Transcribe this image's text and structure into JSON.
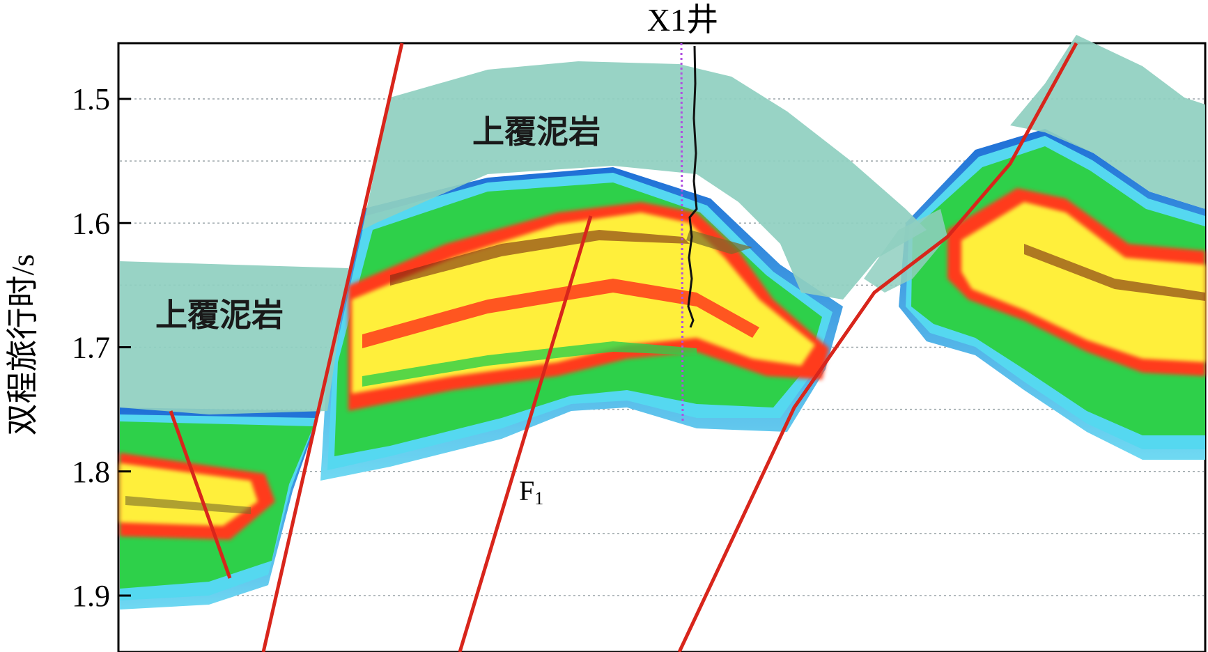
{
  "figure": {
    "well_label": "X1井",
    "ylabel": "双程旅行时/s",
    "fault_label_main": "F",
    "fault_label_sub": "1",
    "annotations": [
      "上覆泥岩",
      "上覆泥岩"
    ]
  },
  "chart_data": {
    "type": "seismic-section",
    "yaxis": {
      "label": "双程旅行时/s",
      "ticks": [
        1.5,
        1.6,
        1.7,
        1.8,
        1.9
      ],
      "tick_labels": [
        "1.5",
        "1.6",
        "1.7",
        "1.8",
        "1.9"
      ],
      "range": [
        1.46,
        1.95
      ],
      "inverted": true,
      "gridlines": "dotted"
    },
    "well": {
      "name": "X1井"
    },
    "faults": [
      {
        "name": "F1"
      }
    ],
    "lithology_labels": [
      "上覆泥岩",
      "上覆泥岩"
    ],
    "colors": {
      "overburden": "#8fcfc0",
      "fault": "#d8251b",
      "high_amplitude": "#ffef3a",
      "mid_amplitude": "#ff3b1c",
      "low_amplitude": "#2ed04a",
      "background_amplitude": "#55d8f0"
    }
  }
}
